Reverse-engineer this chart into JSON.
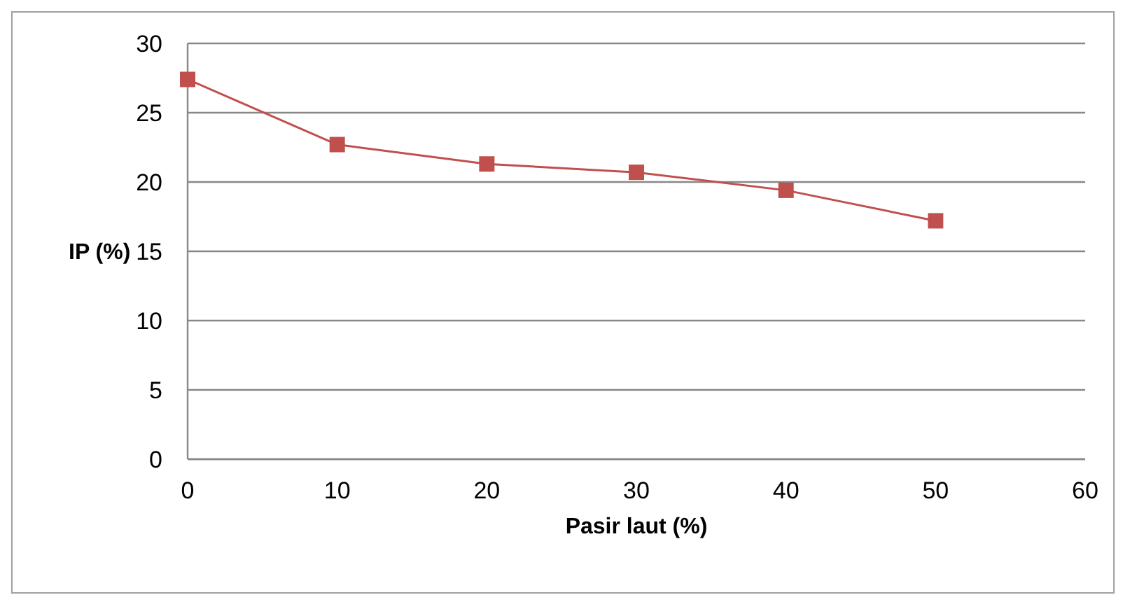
{
  "chart_data": {
    "type": "line",
    "xlabel": "Pasir laut (%)",
    "ylabel": "IP (%)",
    "x": [
      0,
      10,
      20,
      30,
      40,
      50
    ],
    "series": [
      {
        "color": "#c0504d",
        "values": [
          27.4,
          22.7,
          21.3,
          20.7,
          19.4,
          17.2
        ]
      }
    ],
    "xlim": [
      0,
      60
    ],
    "xticks": [
      0,
      10,
      20,
      30,
      40,
      50,
      60
    ],
    "ylim": [
      0,
      30
    ],
    "yticks": [
      0,
      5,
      10,
      15,
      20,
      25,
      30
    ],
    "grid": "y",
    "marker": "square",
    "line_style": "solid"
  }
}
